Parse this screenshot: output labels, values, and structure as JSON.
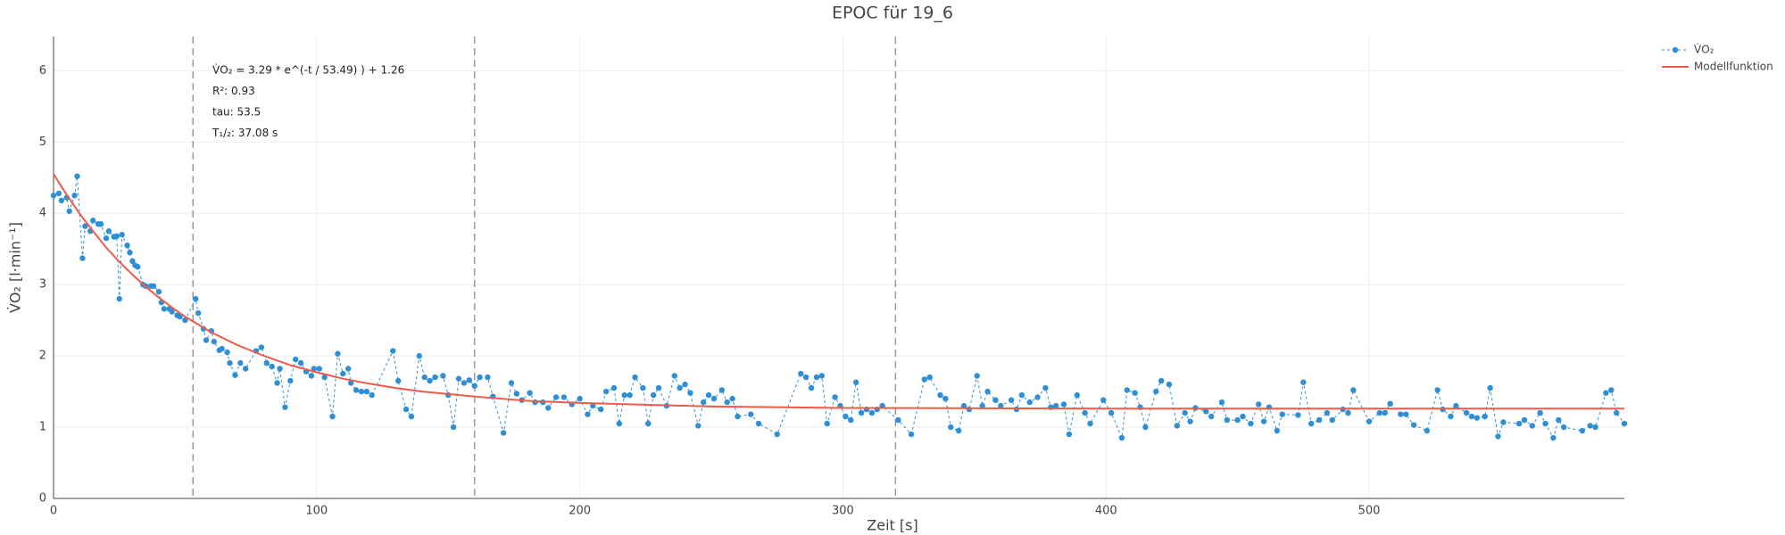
{
  "chart_data": {
    "type": "scatter-line",
    "title": "EPOC für 19_6",
    "x_label": "Zeit [s]",
    "y_label": "V̇O₂ [l·min⁻¹]",
    "annotations": [
      "V̇O₂ = 3.29 * e^(-t / 53.49) ) + 1.26",
      "R²: 0.93",
      "tau: 53.5",
      "T₁/₂: 37.08 s"
    ],
    "xlim": [
      0,
      597
    ],
    "ylim": [
      0,
      6.48
    ],
    "xticks": [
      0,
      100,
      200,
      300,
      400,
      500
    ],
    "yticks": [
      0,
      1,
      2,
      3,
      4,
      5,
      6
    ],
    "grid": true,
    "legend": "top-right-outside",
    "vlines": [
      53,
      160,
      320
    ],
    "vline_color": "#999999",
    "series": [
      {
        "name": "V̇O₂",
        "color": "#2e8fd5",
        "mode": "markers+dashed-line",
        "x": [
          0,
          2,
          3,
          5,
          6,
          8,
          9,
          11,
          12,
          14,
          15,
          17,
          18,
          20,
          21,
          23,
          24,
          25,
          26,
          28,
          29,
          30,
          31,
          32,
          34,
          35,
          37,
          38,
          40,
          41,
          42,
          44,
          45,
          47,
          48,
          50,
          54,
          55,
          57,
          58,
          60,
          61,
          63,
          64,
          66,
          67,
          69,
          71,
          73,
          77,
          79,
          81,
          83,
          85,
          86,
          88,
          90,
          92,
          94,
          96,
          98,
          99,
          101,
          103,
          106,
          108,
          110,
          112,
          113,
          115,
          117,
          119,
          121,
          129,
          131,
          134,
          136,
          139,
          141,
          143,
          145,
          148,
          150,
          152,
          154,
          156,
          158,
          160,
          162,
          165,
          167,
          171,
          174,
          176,
          178,
          181,
          183,
          186,
          188,
          191,
          194,
          197,
          200,
          203,
          205,
          208,
          210,
          213,
          215,
          217,
          219,
          221,
          224,
          226,
          228,
          230,
          233,
          236,
          238,
          240,
          242,
          245,
          247,
          249,
          251,
          254,
          256,
          258,
          260,
          265,
          268,
          275,
          284,
          286,
          288,
          290,
          292,
          294,
          297,
          299,
          301,
          303,
          305,
          307,
          309,
          311,
          313,
          315,
          321,
          326,
          331,
          333,
          337,
          339,
          341,
          344,
          346,
          348,
          351,
          353,
          355,
          358,
          360,
          364,
          366,
          368,
          371,
          374,
          377,
          379,
          381,
          384,
          386,
          389,
          392,
          394,
          399,
          402,
          406,
          408,
          411,
          413,
          415,
          419,
          421,
          424,
          427,
          430,
          432,
          434,
          438,
          440,
          444,
          446,
          450,
          452,
          455,
          458,
          460,
          462,
          465,
          467,
          473,
          475,
          478,
          481,
          484,
          486,
          490,
          492,
          494,
          500,
          504,
          506,
          508,
          512,
          514,
          517,
          522,
          526,
          528,
          531,
          533,
          537,
          539,
          541,
          544,
          546,
          549,
          551,
          557,
          559,
          562,
          565,
          567,
          570,
          572,
          574,
          581,
          584,
          586,
          590,
          592,
          594,
          597
        ],
        "values": [
          4.25,
          4.28,
          4.18,
          4.22,
          4.03,
          4.25,
          4.52,
          3.37,
          3.82,
          3.75,
          3.9,
          3.85,
          3.85,
          3.65,
          3.75,
          3.67,
          3.68,
          2.8,
          3.7,
          3.55,
          3.45,
          3.33,
          3.27,
          3.25,
          3.0,
          2.98,
          2.98,
          2.98,
          2.9,
          2.75,
          2.66,
          2.66,
          2.62,
          2.57,
          2.55,
          2.5,
          2.8,
          2.6,
          2.38,
          2.22,
          2.35,
          2.2,
          2.08,
          2.1,
          2.05,
          1.9,
          1.73,
          1.9,
          1.82,
          2.07,
          2.12,
          1.9,
          1.85,
          1.62,
          1.82,
          1.28,
          1.65,
          1.95,
          1.9,
          1.78,
          1.72,
          1.82,
          1.82,
          1.7,
          1.15,
          2.03,
          1.75,
          1.82,
          1.62,
          1.52,
          1.5,
          1.5,
          1.45,
          2.07,
          1.65,
          1.25,
          1.15,
          2.0,
          1.7,
          1.65,
          1.7,
          1.72,
          1.45,
          1.0,
          1.68,
          1.62,
          1.66,
          1.58,
          1.7,
          1.7,
          1.43,
          0.92,
          1.62,
          1.47,
          1.38,
          1.48,
          1.35,
          1.35,
          1.27,
          1.42,
          1.42,
          1.32,
          1.4,
          1.18,
          1.3,
          1.25,
          1.5,
          1.55,
          1.05,
          1.45,
          1.45,
          1.7,
          1.55,
          1.05,
          1.45,
          1.55,
          1.3,
          1.72,
          1.55,
          1.6,
          1.48,
          1.02,
          1.35,
          1.45,
          1.4,
          1.52,
          1.35,
          1.4,
          1.15,
          1.18,
          1.05,
          0.9,
          1.75,
          1.7,
          1.55,
          1.7,
          1.72,
          1.05,
          1.42,
          1.3,
          1.15,
          1.1,
          1.63,
          1.2,
          1.25,
          1.2,
          1.25,
          1.3,
          1.1,
          0.9,
          1.67,
          1.7,
          1.45,
          1.4,
          1.0,
          0.95,
          1.3,
          1.25,
          1.72,
          1.3,
          1.5,
          1.38,
          1.3,
          1.38,
          1.25,
          1.45,
          1.35,
          1.42,
          1.55,
          1.28,
          1.3,
          1.32,
          0.9,
          1.45,
          1.2,
          1.05,
          1.38,
          1.2,
          0.85,
          1.52,
          1.48,
          1.28,
          1.0,
          1.5,
          1.65,
          1.6,
          1.02,
          1.2,
          1.08,
          1.27,
          1.22,
          1.15,
          1.35,
          1.1,
          1.1,
          1.15,
          1.05,
          1.32,
          1.08,
          1.28,
          0.95,
          1.18,
          1.17,
          1.63,
          1.05,
          1.1,
          1.2,
          1.1,
          1.25,
          1.2,
          1.52,
          1.08,
          1.2,
          1.2,
          1.33,
          1.18,
          1.18,
          1.03,
          0.95,
          1.52,
          1.25,
          1.15,
          1.3,
          1.2,
          1.15,
          1.13,
          1.15,
          1.55,
          0.87,
          1.07,
          1.05,
          1.1,
          1.02,
          1.2,
          1.05,
          0.85,
          1.1,
          1.0,
          0.95,
          1.02,
          1.0,
          1.48,
          1.52,
          1.2,
          1.05
        ]
      },
      {
        "name": "Modellfunktion",
        "color": "#ef5a48",
        "mode": "line",
        "x": [
          0,
          5,
          10,
          15,
          20,
          25,
          30,
          35,
          40,
          45,
          50,
          60,
          70,
          80,
          90,
          100,
          110,
          120,
          130,
          140,
          160,
          180,
          200,
          250,
          300,
          400,
          500,
          597
        ],
        "values": [
          4.55,
          4.26,
          3.99,
          3.75,
          3.52,
          3.32,
          3.14,
          2.97,
          2.82,
          2.68,
          2.55,
          2.33,
          2.15,
          2.0,
          1.87,
          1.77,
          1.68,
          1.61,
          1.55,
          1.5,
          1.43,
          1.37,
          1.34,
          1.29,
          1.27,
          1.26,
          1.26,
          1.26
        ]
      }
    ]
  }
}
